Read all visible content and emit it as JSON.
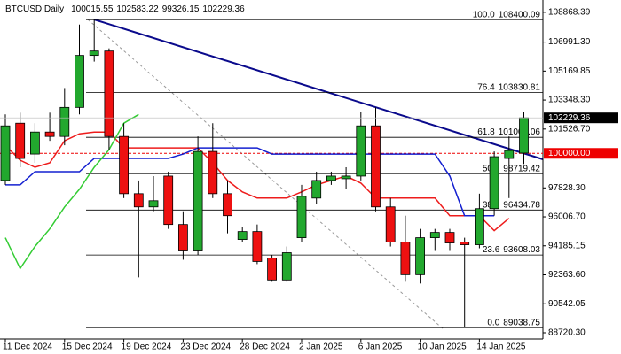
{
  "chart_data": {
    "type": "candlestick",
    "title": "BTCUSD,Daily",
    "categories": [
      "11 Dec 2024",
      null,
      null,
      null,
      "15 Dec 2024",
      null,
      null,
      null,
      "19 Dec 2024",
      null,
      null,
      null,
      "23 Dec 2024",
      null,
      null,
      null,
      "28 Dec 2024",
      null,
      null,
      null,
      "2 Jan 2025",
      null,
      null,
      null,
      "6 Jan 2025",
      null,
      null,
      null,
      "10 Jan 2025",
      null,
      null,
      null,
      "14 Jan 2025",
      null,
      null,
      null
    ],
    "open": [
      98294,
      101893,
      99955,
      101339,
      101062,
      102889,
      106155,
      106432,
      101062,
      97464,
      96633,
      98571,
      95526,
      93865,
      100121,
      97464,
      94585,
      95083,
      93423,
      92039,
      94696,
      97187,
      98294,
      98405,
      98571,
      101727,
      96633,
      94419,
      92371,
      94696,
      95028,
      94419,
      94253,
      96523,
      99679,
      100015.55
    ],
    "high": [
      102446,
      102557,
      101893,
      102557,
      104107,
      108093,
      108400,
      106598,
      101893,
      98294,
      98571,
      98848,
      96357,
      101062,
      101893,
      98294,
      95360,
      95526,
      93589,
      94142,
      98017,
      98848,
      98848,
      99125,
      102612,
      102889,
      97187,
      96080,
      95249,
      95249,
      95249,
      94696,
      97464,
      100121,
      101062,
      102583.22
    ],
    "low": [
      98017,
      99125,
      99402,
      100785,
      100509,
      102446,
      105768,
      100232,
      97187,
      92205,
      96357,
      95249,
      93312,
      93589,
      97187,
      94973,
      94419,
      93035,
      91928,
      91928,
      94419,
      96800,
      98017,
      97740,
      98294,
      96357,
      94142,
      91928,
      91817,
      93865,
      93865,
      89039,
      94032,
      96080,
      97187,
      99326.15
    ],
    "close": [
      101727,
      99679,
      101339,
      101062,
      102889,
      106155,
      106432,
      101062,
      97464,
      96633,
      97021,
      95526,
      93865,
      100121,
      97464,
      96080,
      95083,
      93201,
      92039,
      93755,
      97298,
      98294,
      98571,
      98571,
      101727,
      96633,
      94419,
      92371,
      94696,
      95028,
      94364,
      94253,
      96523,
      99789,
      100177,
      102229.36
    ],
    "up_color": "#22a82e",
    "down_color": "#ee1111",
    "lines": [
      {
        "color": "#ee1c1c",
        "values": [
          100509,
          99568,
          99125,
          99402,
          100785,
          101228,
          101339,
          101339,
          100343,
          100343,
          100343,
          100343,
          100343,
          100343,
          99402,
          98294,
          97575,
          97187,
          97187,
          97187,
          97575,
          98017,
          98294,
          98571,
          98128,
          97187,
          97187,
          97187,
          97187,
          97187,
          96080,
          96080,
          96080,
          95139,
          95914,
          null
        ]
      },
      {
        "color": "#1420d0",
        "values": [
          98017,
          98017,
          98848,
          98848,
          98848,
          98848,
          99679,
          99679,
          99679,
          99679,
          99679,
          99679,
          99955,
          100343,
          100343,
          100343,
          100343,
          100343,
          99955,
          99955,
          99955,
          99955,
          99955,
          99955,
          99955,
          99955,
          99955,
          99955,
          99955,
          99955,
          98571,
          96080,
          96080,
          96080,
          null,
          null
        ]
      },
      {
        "color": "#33cc33",
        "values": [
          94696,
          92758,
          94142,
          95249,
          96633,
          97741,
          99125,
          100232,
          101893,
          102446,
          null,
          null,
          null,
          null,
          null,
          null,
          null,
          null,
          null,
          null,
          null,
          null,
          null,
          null,
          null,
          null,
          null,
          null,
          null,
          null,
          null,
          null,
          null,
          null,
          null,
          null
        ]
      }
    ],
    "ylim": [
      88330,
      109640
    ],
    "yticks": [
      108868.39,
      {
        "value": 106991.3,
        "label": "106991.30"
      },
      105169.85,
      {
        "value": 103348.3,
        "label": "103348.30"
      },
      {
        "value": 101526.7,
        "label": "101526.70"
      },
      {
        "value": 97828.3,
        "label": "97828.30"
      },
      {
        "value": 96006.7,
        "label": "96006.70"
      },
      94185.15,
      {
        "value": 92363.6,
        "label": "92363.60"
      },
      90542.05,
      {
        "value": 88720.3,
        "label": "88720.30"
      }
    ],
    "fib": [
      {
        "ratio": "100.0",
        "price": 108400.09
      },
      {
        "ratio": "76.4",
        "price": 103830.81
      },
      {
        "ratio": "61.8",
        "price": 101004.06
      },
      {
        "ratio": "50.0",
        "price": 98719.42
      },
      {
        "ratio": "38.2",
        "price": 96434.78
      },
      {
        "ratio": "23.6",
        "price": 93608.03
      },
      {
        "ratio": "0.0",
        "price": 89038.75
      }
    ],
    "alert": {
      "value": 100000,
      "label": "100000.00"
    },
    "grid": false
  }
}
